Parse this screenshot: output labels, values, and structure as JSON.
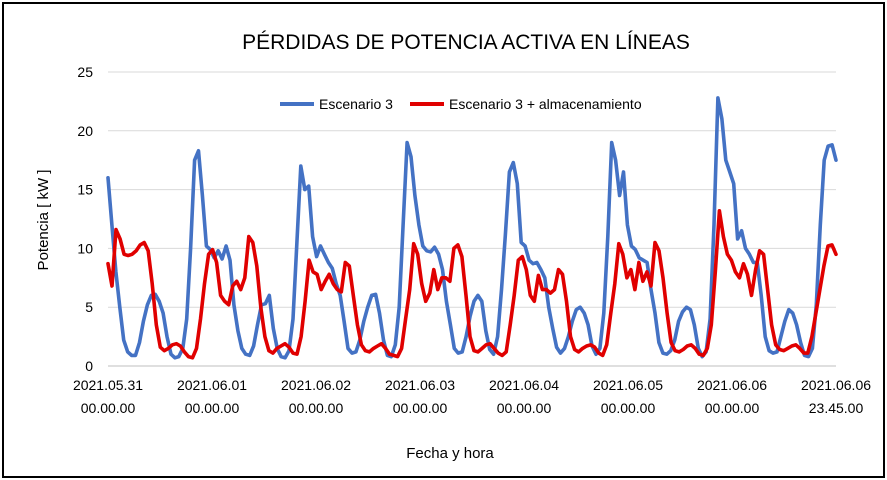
{
  "chart_data": {
    "type": "line",
    "title": "PÉRDIDAS DE POTENCIA ACTIVA EN LÍNEAS",
    "xlabel": "Fecha y hora",
    "ylabel": "Potencia [ kW ]",
    "ylim": [
      0,
      25
    ],
    "yticks": [
      "0",
      "5",
      "10",
      "15",
      "20",
      "25"
    ],
    "xlim": [
      "2021.05.31 00.00.00",
      "2021.06.06 23.45.00"
    ],
    "xticks": [
      {
        "line1": "2021.05.31",
        "line2": "00.00.00"
      },
      {
        "line1": "2021.06.01",
        "line2": "00.00.00"
      },
      {
        "line1": "2021.06.02",
        "line2": "00.00.00"
      },
      {
        "line1": "2021.06.03",
        "line2": "00.00.00"
      },
      {
        "line1": "2021.06.04",
        "line2": "00.00.00"
      },
      {
        "line1": "2021.06.05",
        "line2": "00.00.00"
      },
      {
        "line1": "2021.06.06",
        "line2": "00.00.00"
      },
      {
        "line1": "2021.06.06",
        "line2": "23.45.00"
      }
    ],
    "grid": true,
    "legend_position": "top",
    "x_step_hours": 1,
    "series": [
      {
        "name": "Escenario 3",
        "color": "#4472C4",
        "values": [
          16,
          12,
          8,
          5,
          2.2,
          1.2,
          0.9,
          0.9,
          2,
          3.8,
          5.2,
          6,
          6.1,
          5.5,
          4.5,
          2.5,
          1,
          0.7,
          0.8,
          1.5,
          4,
          10,
          17.5,
          18.3,
          14.5,
          10.2,
          9.9,
          9.2,
          9.8,
          9.1,
          10.2,
          9,
          5.2,
          3,
          1.5,
          1,
          0.9,
          1.7,
          3.5,
          5.2,
          5.3,
          6,
          3.2,
          1.5,
          0.8,
          0.7,
          1.3,
          4,
          10.5,
          17,
          15,
          15.3,
          11,
          9.3,
          10.2,
          9.5,
          8.8,
          8.3,
          7,
          6,
          3.8,
          1.5,
          1.1,
          1.2,
          2.2,
          3.8,
          5,
          6,
          6.1,
          4.5,
          2.2,
          0.9,
          0.8,
          1.8,
          5,
          12,
          19,
          17.8,
          14.5,
          12,
          10.2,
          9.8,
          9.7,
          10.1,
          9.5,
          8.2,
          5.5,
          3.5,
          1.5,
          1.1,
          1.2,
          2.5,
          4.2,
          5.5,
          6,
          5.5,
          3,
          1.4,
          1,
          2.5,
          6.5,
          11.2,
          16.5,
          17.3,
          15.5,
          10.5,
          10.2,
          9,
          8.7,
          8.8,
          8.2,
          7.5,
          5,
          3.2,
          1.6,
          1.1,
          1.5,
          2.5,
          3.8,
          4.8,
          5,
          4.5,
          3.5,
          1.7,
          1,
          1.5,
          4.5,
          11,
          19,
          17.5,
          14.5,
          16.5,
          12,
          10.2,
          9.9,
          9.2,
          9,
          8.8,
          6.5,
          4.5,
          2,
          1.1,
          1,
          1.3,
          2.2,
          3.8,
          4.6,
          5,
          4.8,
          3.5,
          1.5,
          0.8,
          1.2,
          4,
          12,
          22.8,
          21,
          17.5,
          16.5,
          15.5,
          10.8,
          11.5,
          10,
          9.5,
          8.8,
          8.8,
          6,
          2.5,
          1.3,
          1.1,
          1.2,
          2.5,
          3.8,
          4.8,
          4.5,
          3.5,
          2,
          0.9,
          0.8,
          1.5,
          5.2,
          12,
          17.5,
          18.7,
          18.8,
          17.5
        ]
      },
      {
        "name": "Escenario 3 + almacenamiento",
        "color": "#E00000",
        "values": [
          8.7,
          6.8,
          11.6,
          10.8,
          9.5,
          9.4,
          9.5,
          9.8,
          10.3,
          10.5,
          9.8,
          7,
          3.5,
          1.6,
          1.3,
          1.5,
          1.8,
          1.9,
          1.7,
          1.2,
          0.8,
          0.7,
          1.5,
          4,
          7,
          9.5,
          9.9,
          8.8,
          6,
          5.5,
          5.2,
          6.8,
          7.2,
          6.5,
          7.5,
          11,
          10.5,
          8.5,
          5,
          2.5,
          1.3,
          1.1,
          1.5,
          1.7,
          1.9,
          1.6,
          1.1,
          1,
          2.5,
          5.5,
          9,
          8,
          7.8,
          6.5,
          7.2,
          7.8,
          7,
          6.5,
          6.3,
          8.8,
          8.5,
          6,
          3.5,
          1.8,
          1.3,
          1.2,
          1.5,
          1.7,
          1.9,
          1.5,
          1,
          0.9,
          0.8,
          1.5,
          4,
          6.5,
          10.4,
          9.5,
          7,
          5.5,
          6.2,
          8.2,
          6.5,
          7.5,
          7.5,
          7.2,
          10,
          10.3,
          9.3,
          6,
          2.5,
          1.3,
          1.2,
          1.5,
          1.8,
          1.9,
          1.5,
          1.1,
          0.9,
          1.2,
          3.5,
          6,
          9,
          9.3,
          8.2,
          6,
          5.5,
          7.7,
          6.5,
          6.5,
          6.2,
          6.5,
          8.2,
          7.8,
          5.5,
          2.5,
          1.4,
          1.2,
          1.5,
          1.7,
          1.8,
          1.6,
          1.1,
          0.9,
          1.8,
          4.5,
          7,
          10.4,
          9.5,
          7.5,
          8.2,
          6.5,
          8.8,
          7.2,
          8,
          6.8,
          10.5,
          9.8,
          7.5,
          4.5,
          2,
          1.3,
          1.2,
          1.4,
          1.7,
          1.8,
          1.5,
          1,
          0.9,
          1.5,
          3.5,
          8,
          13.2,
          11,
          9.5,
          9,
          8,
          7.5,
          8.7,
          7.8,
          6,
          8.2,
          9.8,
          9.5,
          6.5,
          3.5,
          1.8,
          1.4,
          1.3,
          1.5,
          1.7,
          1.8,
          1.5,
          1.1,
          1.1,
          2.5,
          4.5,
          6.5,
          8.5,
          10.2,
          10.3,
          9.5
        ]
      }
    ]
  }
}
